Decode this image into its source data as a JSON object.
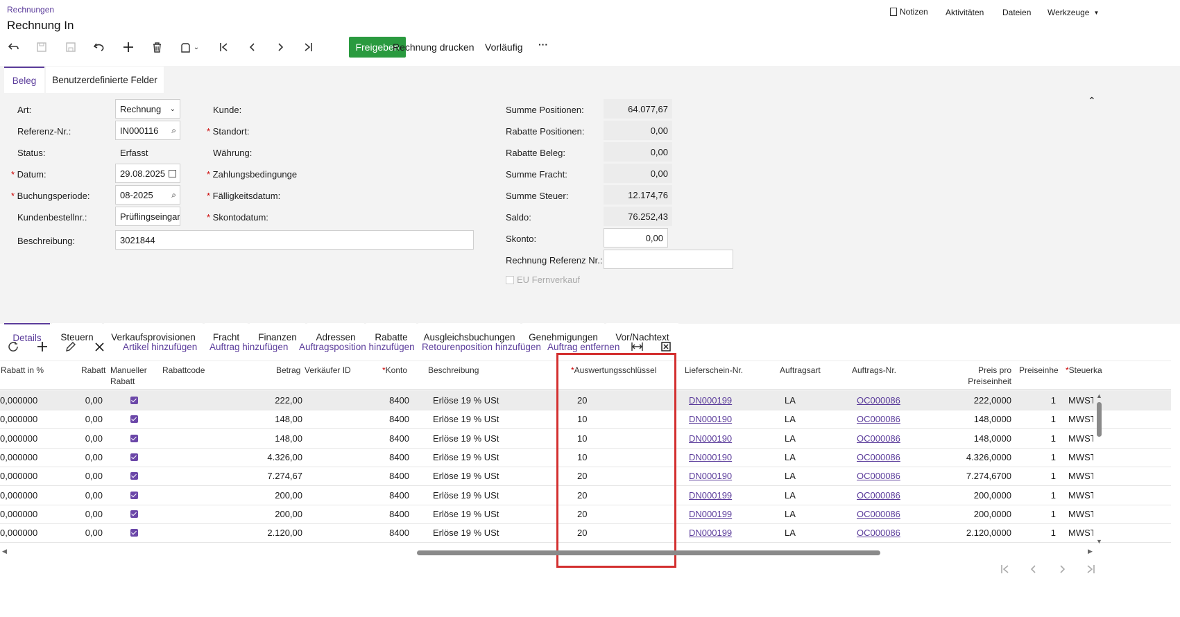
{
  "breadcrumb": "Rechnungen",
  "page_title": "Rechnung In",
  "top_right": {
    "notes": "Notizen",
    "activities": "Aktivitäten",
    "files": "Dateien",
    "tools": "Werkzeuge"
  },
  "toolbar": {
    "release": "Freigeben",
    "print": "Rechnung drucken",
    "preliminary": "Vorläufig",
    "more": "···"
  },
  "top_tabs": [
    "Beleg",
    "Benutzerdefinierte Felder"
  ],
  "form": {
    "art_label": "Art:",
    "art_value": "Rechnung",
    "ref_label": "Referenz-Nr.:",
    "ref_value": "IN000116",
    "status_label": "Status:",
    "status_value": "Erfasst",
    "datum_label": "Datum:",
    "datum_value": "29.08.2025",
    "periode_label": "Buchungsperiode:",
    "periode_value": "08-2025",
    "kundenbest_label": "Kundenbestellnr.:",
    "kundenbest_value": "Prüflingseingar",
    "beschreibung_label": "Beschreibung:",
    "beschreibung_value": "3021844",
    "kunde_label": "Kunde:",
    "standort_label": "Standort:",
    "waehrung_label": "Währung:",
    "zahlung_label": "Zahlungsbedingunge",
    "faellig_label": "Fälligkeitsdatum:",
    "skontodatum_label": "Skontodatum:"
  },
  "summary": {
    "summe_pos_label": "Summe Positionen:",
    "summe_pos": "64.077,67",
    "rabatte_pos_label": "Rabatte Positionen:",
    "rabatte_pos": "0,00",
    "rabatte_beleg_label": "Rabatte Beleg:",
    "rabatte_beleg": "0,00",
    "fracht_label": "Summe Fracht:",
    "fracht": "0,00",
    "steuer_label": "Summe Steuer:",
    "steuer": "12.174,76",
    "saldo_label": "Saldo:",
    "saldo": "76.252,43",
    "skonto_label": "Skonto:",
    "skonto": "0,00",
    "ref_nr_label": "Rechnung Referenz Nr.:",
    "ref_nr": "",
    "eu_label": "EU Fernverkauf"
  },
  "bottom_tabs": [
    "Details",
    "Steuern",
    "Verkaufsprovisionen",
    "Fracht",
    "Finanzen",
    "Adressen",
    "Rabatte",
    "Ausgleichsbuchungen",
    "Genehmigungen",
    "Vor/Nachtext"
  ],
  "grid_toolbar": [
    "Artikel hinzufügen",
    "Auftrag hinzufügen",
    "Auftragsposition hinzufügen",
    "Retourenposition hinzufügen",
    "Auftrag entfernen"
  ],
  "columns": {
    "rabatt_pct": "Rabatt in %",
    "rabatt": "Rabatt",
    "manuell_1": "Manueller",
    "manuell_2": "Rabatt",
    "rabattcode": "Rabattcode",
    "betrag": "Betrag",
    "verkaeufer": "Verkäufer ID",
    "konto": "Konto",
    "beschreibung": "Beschreibung",
    "auswertung": "Auswertungsschlüssel",
    "lieferschein": "Lieferschein-Nr.",
    "auftragsart": "Auftragsart",
    "auftragsnr": "Auftrags-Nr.",
    "preis_1": "Preis pro",
    "preis_2": "Preiseinheit",
    "preiseinheit": "Preiseinhe",
    "steuer": "Steuerka"
  },
  "rows": [
    {
      "rabatt_pct": "0,000000",
      "rabatt": "0,00",
      "betrag": "222,00",
      "konto": "8400",
      "beschreibung": "Erlöse 19 % USt",
      "auswertung": "20",
      "lieferschein": "DN000199",
      "auftragsart": "LA",
      "auftragsnr": "OC000086",
      "preis": "222,0000",
      "einheit": "1",
      "steuer": "MWST"
    },
    {
      "rabatt_pct": "0,000000",
      "rabatt": "0,00",
      "betrag": "148,00",
      "konto": "8400",
      "beschreibung": "Erlöse 19 % USt",
      "auswertung": "10",
      "lieferschein": "DN000190",
      "auftragsart": "LA",
      "auftragsnr": "OC000086",
      "preis": "148,0000",
      "einheit": "1",
      "steuer": "MWST"
    },
    {
      "rabatt_pct": "0,000000",
      "rabatt": "0,00",
      "betrag": "148,00",
      "konto": "8400",
      "beschreibung": "Erlöse 19 % USt",
      "auswertung": "10",
      "lieferschein": "DN000190",
      "auftragsart": "LA",
      "auftragsnr": "OC000086",
      "preis": "148,0000",
      "einheit": "1",
      "steuer": "MWST"
    },
    {
      "rabatt_pct": "0,000000",
      "rabatt": "0,00",
      "betrag": "4.326,00",
      "konto": "8400",
      "beschreibung": "Erlöse 19 % USt",
      "auswertung": "10",
      "lieferschein": "DN000190",
      "auftragsart": "LA",
      "auftragsnr": "OC000086",
      "preis": "4.326,0000",
      "einheit": "1",
      "steuer": "MWST"
    },
    {
      "rabatt_pct": "0,000000",
      "rabatt": "0,00",
      "betrag": "7.274,67",
      "konto": "8400",
      "beschreibung": "Erlöse 19 % USt",
      "auswertung": "20",
      "lieferschein": "DN000190",
      "auftragsart": "LA",
      "auftragsnr": "OC000086",
      "preis": "7.274,6700",
      "einheit": "1",
      "steuer": "MWST"
    },
    {
      "rabatt_pct": "0,000000",
      "rabatt": "0,00",
      "betrag": "200,00",
      "konto": "8400",
      "beschreibung": "Erlöse 19 % USt",
      "auswertung": "20",
      "lieferschein": "DN000199",
      "auftragsart": "LA",
      "auftragsnr": "OC000086",
      "preis": "200,0000",
      "einheit": "1",
      "steuer": "MWST"
    },
    {
      "rabatt_pct": "0,000000",
      "rabatt": "0,00",
      "betrag": "200,00",
      "konto": "8400",
      "beschreibung": "Erlöse 19 % USt",
      "auswertung": "20",
      "lieferschein": "DN000199",
      "auftragsart": "LA",
      "auftragsnr": "OC000086",
      "preis": "200,0000",
      "einheit": "1",
      "steuer": "MWST"
    },
    {
      "rabatt_pct": "0,000000",
      "rabatt": "0,00",
      "betrag": "2.120,00",
      "konto": "8400",
      "beschreibung": "Erlöse 19 % USt",
      "auswertung": "20",
      "lieferschein": "DN000199",
      "auftragsart": "LA",
      "auftragsnr": "OC000086",
      "preis": "2.120,0000",
      "einheit": "1",
      "steuer": "MWST"
    }
  ],
  "colors": {
    "accent": "#5b3c9b",
    "release": "#2a9a3f",
    "highlight": "#d32f2f"
  }
}
